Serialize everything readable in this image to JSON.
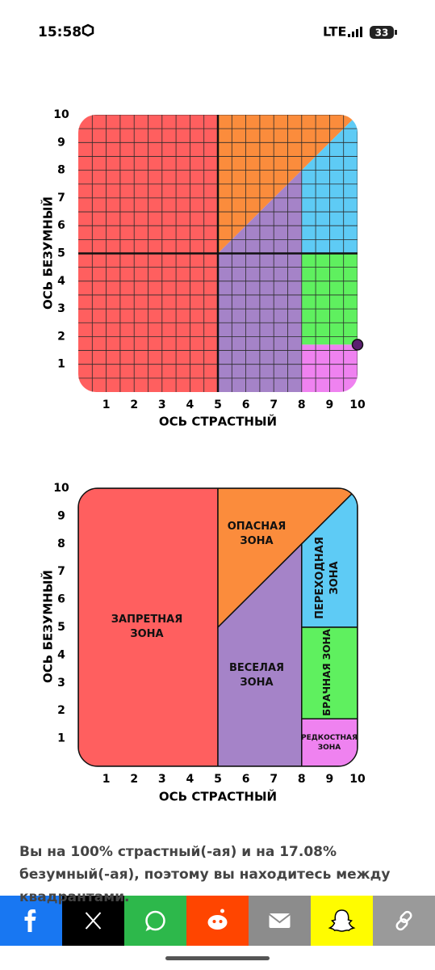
{
  "status_bar": {
    "time": "15:58",
    "network": "LTE",
    "battery": "33"
  },
  "chart_data": [
    {
      "type": "zones",
      "x_label": "ОСЬ СТРАСТНЫЙ",
      "y_label": "ОСЬ БЕЗУМНЫЙ",
      "xlim": [
        0,
        10
      ],
      "ylim": [
        0,
        10
      ],
      "xticks": [
        1,
        2,
        3,
        4,
        5,
        6,
        7,
        8,
        9,
        10
      ],
      "yticks": [
        1,
        2,
        3,
        4,
        5,
        6,
        7,
        8,
        9,
        10
      ],
      "grid": true,
      "zones": [
        {
          "color": "#ff5f5f",
          "x": [
            0,
            5,
            5,
            0
          ],
          "y": [
            0,
            0,
            10,
            10
          ]
        },
        {
          "color": "#fb8c3c",
          "x": [
            5,
            10,
            5
          ],
          "y": [
            5,
            10,
            10
          ]
        },
        {
          "color": "#a583c8",
          "x": [
            5,
            8,
            8,
            5
          ],
          "y": [
            0,
            0,
            8,
            5
          ]
        },
        {
          "color": "#5ecbf5",
          "x": [
            8,
            10,
            10,
            8
          ],
          "y": [
            5,
            5,
            10,
            8
          ]
        },
        {
          "color": "#5ff05f",
          "x": [
            8,
            10,
            10,
            8
          ],
          "y": [
            1.708,
            1.708,
            5,
            5
          ]
        },
        {
          "color": "#ef82f0",
          "x": [
            8,
            10,
            10,
            8
          ],
          "y": [
            0,
            0,
            1.708,
            1.708
          ]
        }
      ],
      "points": {
        "color": "#5b1f70",
        "x": [
          10
        ],
        "y": [
          1.708
        ]
      }
    },
    {
      "type": "zones",
      "x_label": "ОСЬ СТРАСТНЫЙ",
      "y_label": "ОСЬ БЕЗУМНЫЙ",
      "xlim": [
        0,
        10
      ],
      "ylim": [
        0,
        10
      ],
      "xticks": [
        1,
        2,
        3,
        4,
        5,
        6,
        7,
        8,
        9,
        10
      ],
      "yticks": [
        1,
        2,
        3,
        4,
        5,
        6,
        7,
        8,
        9,
        10
      ],
      "grid": false,
      "zones": [
        {
          "color": "#ff5f5f",
          "x": [
            0,
            5,
            5,
            0
          ],
          "y": [
            0,
            0,
            10,
            10
          ],
          "label": [
            "ЗАПРЕТНАЯ",
            "ЗОНА"
          ]
        },
        {
          "color": "#fb8c3c",
          "x": [
            5,
            10,
            5
          ],
          "y": [
            5,
            10,
            10
          ],
          "label": [
            "ОПАСНАЯ",
            "ЗОНА"
          ]
        },
        {
          "color": "#a583c8",
          "x": [
            5,
            8,
            8,
            5
          ],
          "y": [
            0,
            0,
            8,
            5
          ],
          "label": [
            "ВЕСЕЛАЯ",
            "ЗОНА"
          ]
        },
        {
          "color": "#5ecbf5",
          "x": [
            8,
            10,
            10,
            8
          ],
          "y": [
            5,
            5,
            10,
            8
          ],
          "label": [
            "ПЕРЕХОДНАЯ",
            "ЗОНА"
          ]
        },
        {
          "color": "#5ff05f",
          "x": [
            8,
            10,
            10,
            8
          ],
          "y": [
            1.708,
            1.708,
            5,
            5
          ],
          "label": [
            "БРАЧНАЯ ЗОНА"
          ]
        },
        {
          "color": "#ef82f0",
          "x": [
            8,
            10,
            10,
            8
          ],
          "y": [
            0,
            0,
            1.708,
            1.708
          ],
          "label": [
            "РЕДКОСТНАЯ",
            "ЗОНА"
          ]
        }
      ]
    }
  ],
  "result_text": "Вы на 100% страстный(-ая) и на 17.08% безумный(-ая), поэтому вы находитесь между квадрантами."
}
